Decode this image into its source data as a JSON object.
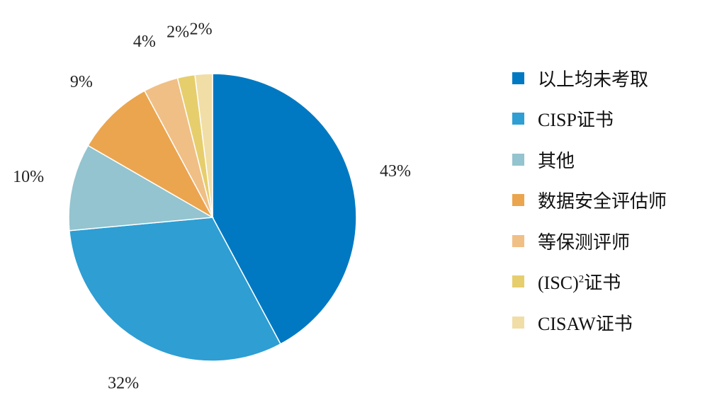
{
  "chart_data": {
    "type": "pie",
    "title": "",
    "legend_position": "right",
    "start_angle": "12 o'clock, clockwise",
    "slices": [
      {
        "name": "以上均未考取",
        "value": 43,
        "label": "43%",
        "color": "#0079C2"
      },
      {
        "name": "CISP证书",
        "value": 32,
        "label": "32%",
        "color": "#2E9ED3"
      },
      {
        "name": "其他",
        "value": 10,
        "label": "10%",
        "color": "#93C4CF"
      },
      {
        "name": "数据安全评估师",
        "value": 9,
        "label": "9%",
        "color": "#EBA54F"
      },
      {
        "name": "等保测评师",
        "value": 4,
        "label": "4%",
        "color": "#F0BF86"
      },
      {
        "name": "(ISC)²证书",
        "value": 2,
        "label": "2%",
        "color": "#E6CE6D"
      },
      {
        "name": "CISAW证书",
        "value": 2,
        "label": "2%",
        "color": "#F1DEA6"
      }
    ]
  },
  "legend": {
    "items": [
      {
        "label": "以上均未考取",
        "color": "#0079C2"
      },
      {
        "label": "CISP证书",
        "color": "#2E9ED3"
      },
      {
        "label": "其他",
        "color": "#93C4CF"
      },
      {
        "label": "数据安全评估师",
        "color": "#EBA54F"
      },
      {
        "label": "等保测评师",
        "color": "#F0BF86"
      },
      {
        "label_prefix": "(ISC)",
        "label_sup": "2",
        "label_suffix": "证书",
        "color": "#E6CE6D"
      },
      {
        "label": "CISAW证书",
        "color": "#F1DEA6"
      }
    ]
  }
}
